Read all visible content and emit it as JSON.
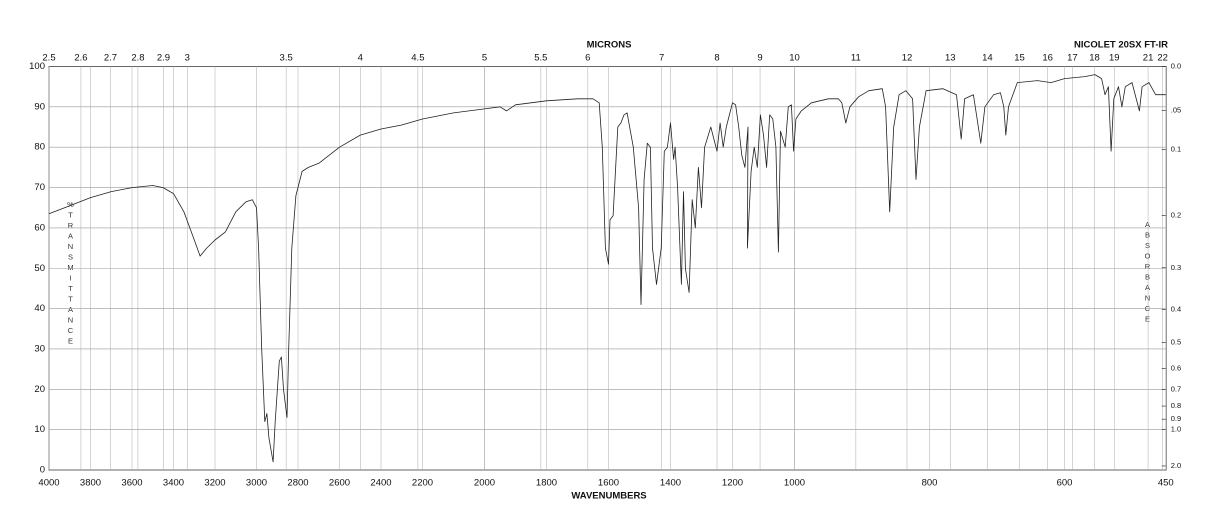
{
  "chart_data": {
    "type": "line",
    "title": "NICOLET 20SX FT-IR",
    "xlabel": "WAVENUMBERS",
    "x2label": "MICRONS",
    "ylabel": "%TRANSMITTANCE",
    "y2label": "ABSORBANCE",
    "xlim": [
      4000,
      450
    ],
    "xticks": [
      4000,
      3800,
      3600,
      3400,
      3200,
      3000,
      2800,
      2600,
      2400,
      2200,
      2000,
      1800,
      1600,
      1400,
      1200,
      1000,
      800,
      600,
      450
    ],
    "x2ticks": [
      2.5,
      2.6,
      2.7,
      2.8,
      2.9,
      3,
      3.5,
      4,
      4.5,
      5,
      5.5,
      6,
      7,
      8,
      9,
      10,
      11,
      12,
      13,
      14,
      15,
      16,
      17,
      18,
      19,
      21,
      22
    ],
    "ylim": [
      0,
      100
    ],
    "yticks": [
      0,
      10,
      20,
      30,
      40,
      50,
      60,
      70,
      80,
      90,
      100
    ],
    "y2ticks": [
      {
        "value": 0,
        "label": "0.0"
      },
      {
        "value": 0.05,
        "label": ".05"
      },
      0.1,
      0.2,
      0.3,
      0.4,
      0.5,
      0.6,
      0.7,
      0.8,
      0.9,
      {
        "value": 1,
        "label": "1.0"
      },
      {
        "value": 2,
        "label": "2.0"
      }
    ],
    "grid": true,
    "series": [
      {
        "color": "#222",
        "x": [
          4000,
          3900,
          3800,
          3700,
          3600,
          3500,
          3450,
          3400,
          3350,
          3300,
          3272,
          3240,
          3200,
          3150,
          3100,
          3050,
          3020,
          3000,
          2990,
          2975,
          2960,
          2950,
          2940,
          2920,
          2910,
          2890,
          2880,
          2870,
          2853,
          2845,
          2830,
          2810,
          2780,
          2750,
          2700,
          2600,
          2500,
          2400,
          2300,
          2200,
          2100,
          2000,
          1950,
          1929,
          1900,
          1800,
          1700,
          1650,
          1630,
          1620,
          1610,
          1600,
          1595,
          1585,
          1570,
          1560,
          1550,
          1540,
          1520,
          1503,
          1495,
          1485,
          1475,
          1465,
          1458,
          1445,
          1430,
          1420,
          1410,
          1400,
          1390,
          1385,
          1377,
          1365,
          1358,
          1352,
          1340,
          1330,
          1320,
          1310,
          1300,
          1290,
          1270,
          1260,
          1250,
          1240,
          1230,
          1220,
          1210,
          1200,
          1190,
          1180,
          1170,
          1160,
          1150,
          1152,
          1140,
          1130,
          1120,
          1110,
          1100,
          1090,
          1080,
          1070,
          1060,
          1052,
          1045,
          1030,
          1020,
          1010,
          1003,
          998,
          990,
          975,
          950,
          935,
          930,
          924,
          918,
          905,
          890,
          870,
          865,
          859,
          853,
          845,
          835,
          825,
          820,
          815,
          805,
          780,
          760,
          753,
          748,
          735,
          724,
          718,
          705,
          695,
          690,
          687,
          683,
          670,
          640,
          620,
          600,
          570,
          555,
          545,
          540,
          535,
          531,
          527,
          520,
          515,
          510,
          500,
          489,
          485,
          475,
          465,
          450
        ],
        "values": [
          63.5,
          65.5,
          67.5,
          69,
          70,
          70.5,
          70,
          68.5,
          64,
          57,
          53,
          55,
          57,
          59,
          64,
          66.5,
          67,
          65,
          55,
          30,
          12,
          14,
          8,
          2,
          12,
          27,
          28,
          20,
          13,
          30,
          55,
          68,
          74,
          75,
          76,
          80,
          83,
          84.5,
          85.5,
          87,
          88.5,
          89.5,
          90,
          89,
          90.5,
          91.5,
          92,
          92,
          91,
          80,
          55,
          51,
          62,
          63,
          85,
          86,
          88,
          88.5,
          80,
          65,
          41,
          72,
          81,
          80,
          55,
          46,
          55,
          79,
          80,
          86,
          77,
          80,
          70,
          46,
          69,
          50,
          44,
          67,
          60,
          75,
          65,
          80,
          85,
          82,
          79,
          86,
          80,
          85,
          88,
          91,
          90.5,
          85,
          78,
          75,
          85,
          55,
          74,
          80,
          75,
          88,
          83,
          75,
          88,
          87,
          80,
          54,
          84,
          80,
          90,
          90.5,
          79,
          87,
          89,
          91,
          92,
          92,
          91,
          86,
          90,
          92.5,
          94,
          94.5,
          90,
          64,
          85,
          93,
          94,
          92,
          72,
          85,
          94,
          94.5,
          93,
          82,
          92,
          93,
          81,
          90,
          93,
          93.5,
          90,
          83,
          90,
          96,
          96.5,
          96,
          97,
          97.5,
          98,
          97,
          93,
          95,
          79,
          92,
          95,
          90,
          95,
          96,
          89,
          95,
          96,
          93,
          93
        ]
      }
    ]
  }
}
